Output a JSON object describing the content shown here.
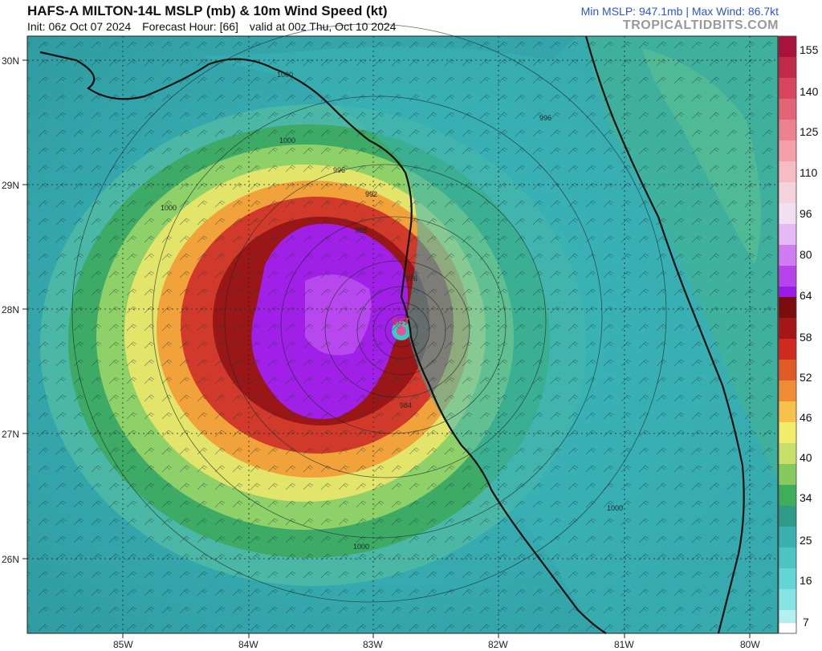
{
  "header": {
    "title": "HAFS-A MILTON-14L MSLP (mb) & 10m Wind Speed (kt)",
    "init": "Init: 06z Oct 07 2024",
    "forecast_hour": "Forecast Hour: [66]",
    "valid": "valid at 00z Thu, Oct 10 2024",
    "stats": "Min MSLP: 947.1mb | Max Wind: 86.7kt",
    "brand": "TROPICALTIDBITS.COM"
  },
  "map": {
    "lat_labels": [
      "30N",
      "29N",
      "28N",
      "27N",
      "26N"
    ],
    "lon_labels": [
      "85W",
      "84W",
      "83W",
      "82W",
      "81W",
      "80W"
    ],
    "center_pressure": "947",
    "isobar_labels": [
      "1000",
      "996",
      "992",
      "988",
      "984",
      "976",
      "1000",
      "1000",
      "996",
      "1000",
      "1000"
    ]
  },
  "colorbar": {
    "ticks": [
      "155",
      "140",
      "125",
      "110",
      "96",
      "80",
      "64",
      "58",
      "52",
      "46",
      "40",
      "34",
      "25",
      "16",
      "7"
    ]
  },
  "colors": {
    "accent": "#2a55d8",
    "brand": "#999999"
  }
}
